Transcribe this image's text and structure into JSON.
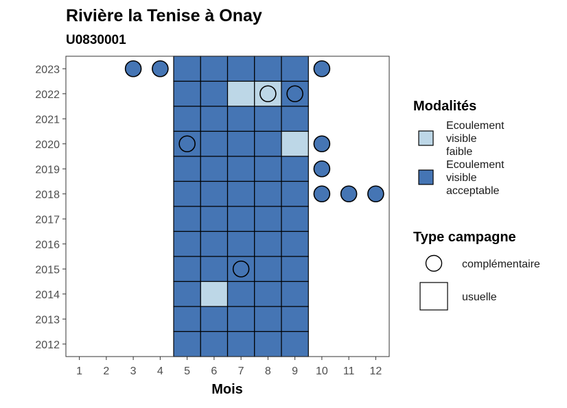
{
  "chart_data": {
    "type": "heatmap",
    "title": "Rivière la Tenise à Onay",
    "subtitle": "U0830001",
    "xlabel": "Mois",
    "ylabel": "",
    "x_ticks": [
      "1",
      "2",
      "3",
      "4",
      "5",
      "6",
      "7",
      "8",
      "9",
      "10",
      "11",
      "12"
    ],
    "y_ticks": [
      "2012",
      "2013",
      "2014",
      "2015",
      "2016",
      "2017",
      "2018",
      "2019",
      "2020",
      "2021",
      "2022",
      "2023"
    ],
    "xlim": [
      0.5,
      12.5
    ],
    "ylim": [
      2011.5,
      2023.5
    ],
    "grid": false,
    "colors": {
      "faible": "#bdd7e7",
      "acceptable": "#4575b4",
      "stroke": "#000000",
      "panel_border": "#333333"
    },
    "legend": {
      "position": "right",
      "modalites_title": "Modalités",
      "modalites": [
        {
          "key": "faible",
          "lines": [
            "Ecoulement",
            "visible",
            "faible"
          ]
        },
        {
          "key": "acceptable",
          "lines": [
            "Ecoulement",
            "visible",
            "acceptable"
          ]
        }
      ],
      "type_title": "Type campagne",
      "types": [
        {
          "shape": "circle",
          "label": "complémentaire"
        },
        {
          "shape": "square",
          "label": "usuelle"
        }
      ]
    },
    "observations": [
      {
        "year": 2023,
        "month": 3,
        "modalite": "acceptable",
        "type": "complementaire"
      },
      {
        "year": 2023,
        "month": 4,
        "modalite": "acceptable",
        "type": "complementaire"
      },
      {
        "year": 2023,
        "month": 5,
        "modalite": "acceptable",
        "type": "usuelle"
      },
      {
        "year": 2023,
        "month": 6,
        "modalite": "acceptable",
        "type": "usuelle"
      },
      {
        "year": 2023,
        "month": 7,
        "modalite": "acceptable",
        "type": "usuelle"
      },
      {
        "year": 2023,
        "month": 8,
        "modalite": "acceptable",
        "type": "usuelle"
      },
      {
        "year": 2023,
        "month": 9,
        "modalite": "acceptable",
        "type": "usuelle"
      },
      {
        "year": 2023,
        "month": 10,
        "modalite": "acceptable",
        "type": "complementaire"
      },
      {
        "year": 2022,
        "month": 5,
        "modalite": "acceptable",
        "type": "usuelle"
      },
      {
        "year": 2022,
        "month": 6,
        "modalite": "acceptable",
        "type": "usuelle"
      },
      {
        "year": 2022,
        "month": 7,
        "modalite": "faible",
        "type": "usuelle"
      },
      {
        "year": 2022,
        "month": 8,
        "modalite": "faible",
        "type": "usuelle"
      },
      {
        "year": 2022,
        "month": 8,
        "modalite": "faible",
        "type": "complementaire"
      },
      {
        "year": 2022,
        "month": 9,
        "modalite": "acceptable",
        "type": "usuelle"
      },
      {
        "year": 2022,
        "month": 9,
        "modalite": "acceptable",
        "type": "complementaire"
      },
      {
        "year": 2021,
        "month": 5,
        "modalite": "acceptable",
        "type": "usuelle"
      },
      {
        "year": 2021,
        "month": 6,
        "modalite": "acceptable",
        "type": "usuelle"
      },
      {
        "year": 2021,
        "month": 7,
        "modalite": "acceptable",
        "type": "usuelle"
      },
      {
        "year": 2021,
        "month": 8,
        "modalite": "acceptable",
        "type": "usuelle"
      },
      {
        "year": 2021,
        "month": 9,
        "modalite": "acceptable",
        "type": "usuelle"
      },
      {
        "year": 2020,
        "month": 5,
        "modalite": "acceptable",
        "type": "usuelle"
      },
      {
        "year": 2020,
        "month": 5,
        "modalite": "acceptable",
        "type": "complementaire"
      },
      {
        "year": 2020,
        "month": 6,
        "modalite": "acceptable",
        "type": "usuelle"
      },
      {
        "year": 2020,
        "month": 7,
        "modalite": "acceptable",
        "type": "usuelle"
      },
      {
        "year": 2020,
        "month": 8,
        "modalite": "acceptable",
        "type": "usuelle"
      },
      {
        "year": 2020,
        "month": 9,
        "modalite": "faible",
        "type": "usuelle"
      },
      {
        "year": 2020,
        "month": 10,
        "modalite": "acceptable",
        "type": "complementaire"
      },
      {
        "year": 2019,
        "month": 5,
        "modalite": "acceptable",
        "type": "usuelle"
      },
      {
        "year": 2019,
        "month": 6,
        "modalite": "acceptable",
        "type": "usuelle"
      },
      {
        "year": 2019,
        "month": 7,
        "modalite": "acceptable",
        "type": "usuelle"
      },
      {
        "year": 2019,
        "month": 8,
        "modalite": "acceptable",
        "type": "usuelle"
      },
      {
        "year": 2019,
        "month": 9,
        "modalite": "acceptable",
        "type": "usuelle"
      },
      {
        "year": 2019,
        "month": 10,
        "modalite": "acceptable",
        "type": "complementaire"
      },
      {
        "year": 2018,
        "month": 5,
        "modalite": "acceptable",
        "type": "usuelle"
      },
      {
        "year": 2018,
        "month": 6,
        "modalite": "acceptable",
        "type": "usuelle"
      },
      {
        "year": 2018,
        "month": 7,
        "modalite": "acceptable",
        "type": "usuelle"
      },
      {
        "year": 2018,
        "month": 8,
        "modalite": "acceptable",
        "type": "usuelle"
      },
      {
        "year": 2018,
        "month": 9,
        "modalite": "acceptable",
        "type": "usuelle"
      },
      {
        "year": 2018,
        "month": 10,
        "modalite": "acceptable",
        "type": "complementaire"
      },
      {
        "year": 2018,
        "month": 11,
        "modalite": "acceptable",
        "type": "complementaire"
      },
      {
        "year": 2018,
        "month": 12,
        "modalite": "acceptable",
        "type": "complementaire"
      },
      {
        "year": 2017,
        "month": 5,
        "modalite": "acceptable",
        "type": "usuelle"
      },
      {
        "year": 2017,
        "month": 6,
        "modalite": "acceptable",
        "type": "usuelle"
      },
      {
        "year": 2017,
        "month": 7,
        "modalite": "acceptable",
        "type": "usuelle"
      },
      {
        "year": 2017,
        "month": 8,
        "modalite": "acceptable",
        "type": "usuelle"
      },
      {
        "year": 2017,
        "month": 9,
        "modalite": "acceptable",
        "type": "usuelle"
      },
      {
        "year": 2016,
        "month": 5,
        "modalite": "acceptable",
        "type": "usuelle"
      },
      {
        "year": 2016,
        "month": 6,
        "modalite": "acceptable",
        "type": "usuelle"
      },
      {
        "year": 2016,
        "month": 7,
        "modalite": "acceptable",
        "type": "usuelle"
      },
      {
        "year": 2016,
        "month": 8,
        "modalite": "acceptable",
        "type": "usuelle"
      },
      {
        "year": 2016,
        "month": 9,
        "modalite": "acceptable",
        "type": "usuelle"
      },
      {
        "year": 2015,
        "month": 5,
        "modalite": "acceptable",
        "type": "usuelle"
      },
      {
        "year": 2015,
        "month": 6,
        "modalite": "acceptable",
        "type": "usuelle"
      },
      {
        "year": 2015,
        "month": 7,
        "modalite": "acceptable",
        "type": "usuelle"
      },
      {
        "year": 2015,
        "month": 7,
        "modalite": "acceptable",
        "type": "complementaire"
      },
      {
        "year": 2015,
        "month": 8,
        "modalite": "acceptable",
        "type": "usuelle"
      },
      {
        "year": 2015,
        "month": 9,
        "modalite": "acceptable",
        "type": "usuelle"
      },
      {
        "year": 2014,
        "month": 5,
        "modalite": "acceptable",
        "type": "usuelle"
      },
      {
        "year": 2014,
        "month": 6,
        "modalite": "faible",
        "type": "usuelle"
      },
      {
        "year": 2014,
        "month": 7,
        "modalite": "acceptable",
        "type": "usuelle"
      },
      {
        "year": 2014,
        "month": 8,
        "modalite": "acceptable",
        "type": "usuelle"
      },
      {
        "year": 2014,
        "month": 9,
        "modalite": "acceptable",
        "type": "usuelle"
      },
      {
        "year": 2013,
        "month": 5,
        "modalite": "acceptable",
        "type": "usuelle"
      },
      {
        "year": 2013,
        "month": 6,
        "modalite": "acceptable",
        "type": "usuelle"
      },
      {
        "year": 2013,
        "month": 7,
        "modalite": "acceptable",
        "type": "usuelle"
      },
      {
        "year": 2013,
        "month": 8,
        "modalite": "acceptable",
        "type": "usuelle"
      },
      {
        "year": 2013,
        "month": 9,
        "modalite": "acceptable",
        "type": "usuelle"
      },
      {
        "year": 2012,
        "month": 5,
        "modalite": "acceptable",
        "type": "usuelle"
      },
      {
        "year": 2012,
        "month": 6,
        "modalite": "acceptable",
        "type": "usuelle"
      },
      {
        "year": 2012,
        "month": 7,
        "modalite": "acceptable",
        "type": "usuelle"
      },
      {
        "year": 2012,
        "month": 8,
        "modalite": "acceptable",
        "type": "usuelle"
      },
      {
        "year": 2012,
        "month": 9,
        "modalite": "acceptable",
        "type": "usuelle"
      }
    ]
  }
}
